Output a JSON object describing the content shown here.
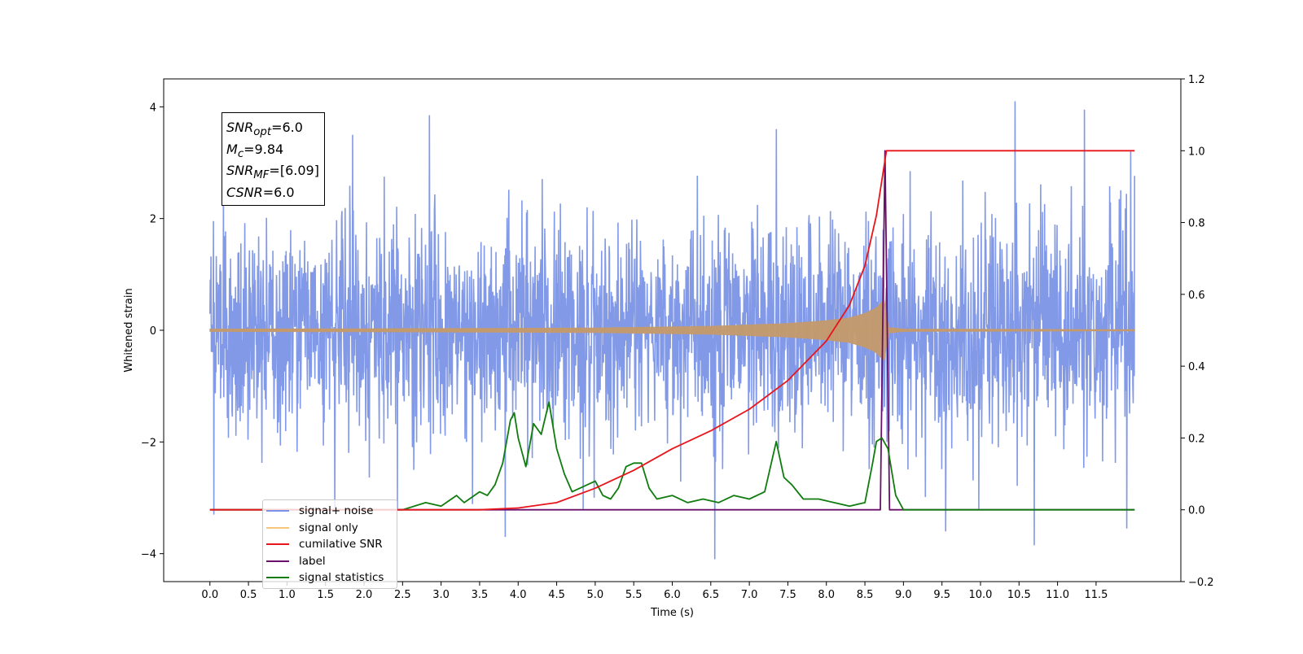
{
  "chart_data": {
    "type": "line",
    "title": "",
    "xlabel": "Time (s)",
    "ylabel": "Whitened strain",
    "ylabel_right": "",
    "xlim": [
      -0.6,
      12.6
    ],
    "ylim": [
      -4.5,
      4.5
    ],
    "ylim_right": [
      -0.2,
      1.2
    ],
    "x_ticks": [
      "0.0",
      "0.5",
      "1.0",
      "1.5",
      "2.0",
      "2.5",
      "3.0",
      "3.5",
      "4.0",
      "4.5",
      "5.0",
      "5.5",
      "6.0",
      "6.5",
      "7.0",
      "7.5",
      "8.0",
      "8.5",
      "9.0",
      "9.5",
      "10.0",
      "10.5",
      "11.0",
      "11.5"
    ],
    "y_ticks_left": [
      "4",
      "2",
      "0",
      "−2",
      "−4"
    ],
    "y_ticks_right": [
      "1.2",
      "1.0",
      "0.8",
      "0.6",
      "0.4",
      "0.2",
      "0.0",
      "−0.2"
    ],
    "grid": false,
    "legend_position": "bottom-left",
    "annotation": {
      "lines": [
        {
          "main": "SNR",
          "sub": "opt",
          "value": "=6.0"
        },
        {
          "main": "M",
          "sub": "c",
          "value": "=9.84"
        },
        {
          "main": "SNR",
          "sub": "MF",
          "value": "=[6.09]"
        },
        {
          "main": "CSNR",
          "sub": "",
          "value": "=6.0"
        }
      ]
    },
    "series": [
      {
        "name": "signal+ noise",
        "axis": "left",
        "color": "#7b93e6",
        "description_values": {
          "x_range": [
            0.0,
            12.0
          ],
          "mean": 0.0,
          "std": 0.95,
          "peaks_max": [
            4.1,
            3.95,
            3.85
          ],
          "peaks_min": [
            -4.1,
            -3.85,
            -3.7
          ]
        },
        "highlights": [
          {
            "x": 10.45,
            "y": 4.1
          },
          {
            "x": 11.35,
            "y": 3.95
          },
          {
            "x": 2.85,
            "y": 3.85
          },
          {
            "x": 6.55,
            "y": -4.1
          },
          {
            "x": 10.7,
            "y": -3.85
          },
          {
            "x": 3.83,
            "y": -3.7
          },
          {
            "x": 11.95,
            "y": 3.2
          },
          {
            "x": 11.9,
            "y": -3.55
          },
          {
            "x": 0.05,
            "y": -3.3
          },
          {
            "x": 1.85,
            "y": 3.5
          },
          {
            "x": 7.35,
            "y": 3.6
          },
          {
            "x": 9.55,
            "y": -3.6
          }
        ]
      },
      {
        "name": "signal only",
        "axis": "left",
        "color": "#c49a6c",
        "envelope": {
          "x": [
            0.0,
            3.0,
            5.0,
            6.5,
            7.5,
            8.0,
            8.3,
            8.5,
            8.65,
            8.75,
            8.8,
            9.0,
            12.0
          ],
          "amp": [
            0.02,
            0.03,
            0.04,
            0.07,
            0.12,
            0.17,
            0.22,
            0.3,
            0.4,
            0.55,
            0.05,
            0.02,
            0.01
          ]
        }
      },
      {
        "name": "cumilative SNR",
        "axis": "right",
        "color": "#e8151b",
        "x": [
          0.0,
          3.5,
          4.0,
          4.5,
          5.0,
          5.5,
          6.0,
          6.5,
          7.0,
          7.5,
          8.0,
          8.3,
          8.5,
          8.65,
          8.78,
          8.8,
          12.0
        ],
        "y": [
          0.0,
          0.0,
          0.005,
          0.02,
          0.06,
          0.11,
          0.17,
          0.22,
          0.28,
          0.36,
          0.47,
          0.57,
          0.68,
          0.82,
          1.0,
          1.0,
          1.0
        ]
      },
      {
        "name": "label",
        "axis": "right",
        "color": "#6a0f6a",
        "x": [
          0.0,
          8.7,
          8.76,
          8.76,
          8.82,
          8.82,
          12.0
        ],
        "y": [
          0.0,
          0.0,
          1.0,
          1.0,
          0.0,
          0.0,
          0.0
        ]
      },
      {
        "name": "signal statistics",
        "axis": "right",
        "color": "#107c10",
        "x": [
          0.0,
          2.5,
          2.8,
          3.0,
          3.2,
          3.3,
          3.5,
          3.6,
          3.7,
          3.8,
          3.9,
          3.95,
          4.0,
          4.1,
          4.2,
          4.3,
          4.4,
          4.5,
          4.6,
          4.7,
          4.8,
          5.0,
          5.1,
          5.2,
          5.3,
          5.4,
          5.5,
          5.6,
          5.7,
          5.8,
          6.0,
          6.2,
          6.4,
          6.6,
          6.8,
          7.0,
          7.2,
          7.35,
          7.45,
          7.55,
          7.7,
          7.9,
          8.1,
          8.3,
          8.5,
          8.6,
          8.65,
          8.72,
          8.8,
          8.9,
          9.0,
          12.0
        ],
        "y": [
          0.0,
          0.0,
          0.02,
          0.01,
          0.04,
          0.02,
          0.05,
          0.04,
          0.07,
          0.13,
          0.25,
          0.27,
          0.2,
          0.12,
          0.24,
          0.21,
          0.3,
          0.17,
          0.1,
          0.05,
          0.06,
          0.08,
          0.04,
          0.03,
          0.06,
          0.12,
          0.13,
          0.13,
          0.06,
          0.03,
          0.04,
          0.02,
          0.03,
          0.02,
          0.04,
          0.03,
          0.05,
          0.19,
          0.09,
          0.07,
          0.03,
          0.03,
          0.02,
          0.01,
          0.02,
          0.13,
          0.19,
          0.2,
          0.17,
          0.04,
          0.0,
          0.0
        ]
      }
    ]
  }
}
